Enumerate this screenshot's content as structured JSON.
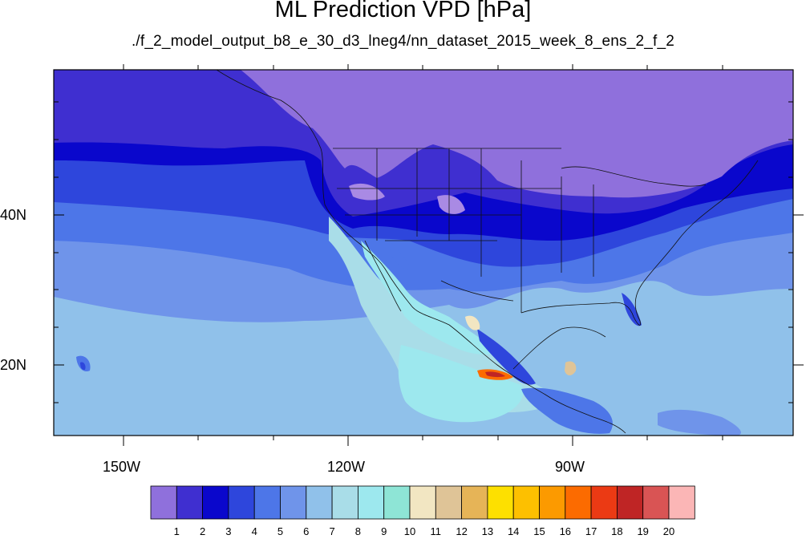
{
  "title": "ML Prediction VPD [hPa]",
  "subtitle": "./f_2_model_output_b8_e_30_d3_lneg4/nn_dataset_2015_week_8_ens_2_f_2",
  "axes": {
    "lat_labels": [
      "40N",
      "20N"
    ],
    "lon_labels": [
      "150W",
      "120W",
      "90W"
    ]
  },
  "colorbar": {
    "labels": [
      "1",
      "2",
      "3",
      "4",
      "5",
      "6",
      "7",
      "8",
      "9",
      "10",
      "11",
      "12",
      "13",
      "14",
      "15",
      "16",
      "17",
      "18",
      "19",
      "20"
    ],
    "colors": [
      "#8f70dc",
      "#3f2fd0",
      "#0a07cc",
      "#2e46dc",
      "#4d76e8",
      "#6f94ea",
      "#90c1ea",
      "#a9dde8",
      "#9de8ee",
      "#8ee5d6",
      "#f2e6c2",
      "#dfc497",
      "#e6b457",
      "#fde000",
      "#fdc000",
      "#fc9a00",
      "#fc6b00",
      "#eb3a14",
      "#bf2525",
      "#d95454",
      "#fbb6b6"
    ]
  },
  "colors": {
    "land_north": "#8f70dc",
    "ocean_far": "#90c1ea"
  }
}
